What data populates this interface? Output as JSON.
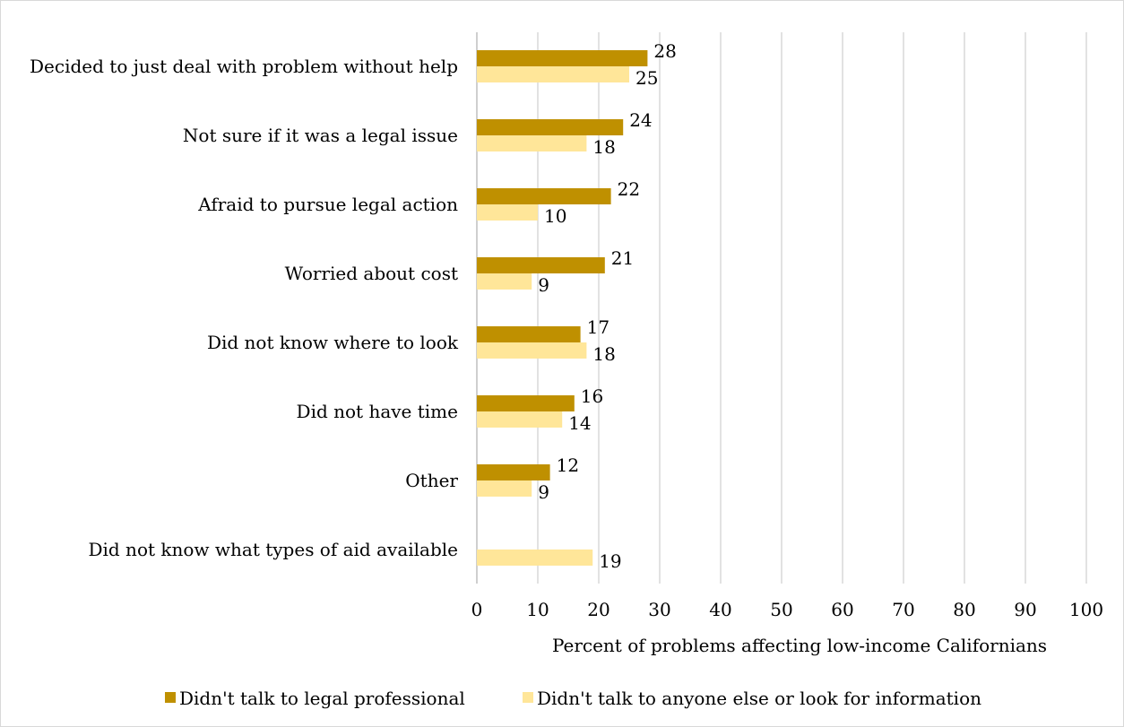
{
  "chart_data": {
    "type": "bar",
    "orientation": "horizontal",
    "categories": [
      "Decided to just deal with problem without help",
      "Not sure if it was a legal issue",
      "Afraid to pursue legal action",
      "Worried about cost",
      "Did not know where to look",
      "Did not have time",
      "Other",
      "Did not know what types of aid available"
    ],
    "series": [
      {
        "name": "Didn't talk to legal professional",
        "color": "#bf9000",
        "values": [
          28,
          24,
          22,
          21,
          17,
          16,
          12,
          null
        ]
      },
      {
        "name": "Didn't talk to anyone else or look for information",
        "color": "#ffe699",
        "values": [
          25,
          18,
          10,
          9,
          18,
          14,
          9,
          19
        ]
      }
    ],
    "xlabel": "Percent of problems affecting low-income Californians",
    "ylabel": "",
    "xlim": [
      0,
      100
    ],
    "xticks": [
      0,
      10,
      20,
      30,
      40,
      50,
      60,
      70,
      80,
      90,
      100
    ],
    "grid": true,
    "gridline_color": "#d9d9d9",
    "legend_position": "bottom"
  }
}
